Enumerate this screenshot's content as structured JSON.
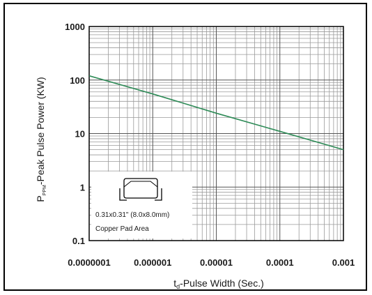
{
  "chart_data": {
    "type": "line",
    "x_scale": "log",
    "y_scale": "log",
    "xlim": [
      1e-07,
      0.001
    ],
    "ylim": [
      0.1,
      1000
    ],
    "x_ticks": [
      "0.0000001",
      "0.000001",
      "0.00001",
      "0.0001",
      "0.001"
    ],
    "y_ticks": [
      "1000",
      "100",
      "10",
      "1",
      "0.1"
    ],
    "xlabel_main": "t",
    "xlabel_sub": "d",
    "xlabel_rest": "-Pulse Width (Sec.)",
    "ylabel_main": "P",
    "ylabel_sub": "PPM",
    "ylabel_rest": "-Peak Pulse Power (KW)",
    "grid": true,
    "series": [
      {
        "color": "#2e8b57",
        "x": [
          1e-07,
          1e-06,
          1e-05,
          0.0001,
          0.001
        ],
        "y": [
          120,
          55,
          24,
          11,
          5
        ]
      }
    ],
    "inset": {
      "line1": "0.31x0.31\" (8.0x8.0mm)",
      "line2": "Copper Pad Area"
    }
  }
}
